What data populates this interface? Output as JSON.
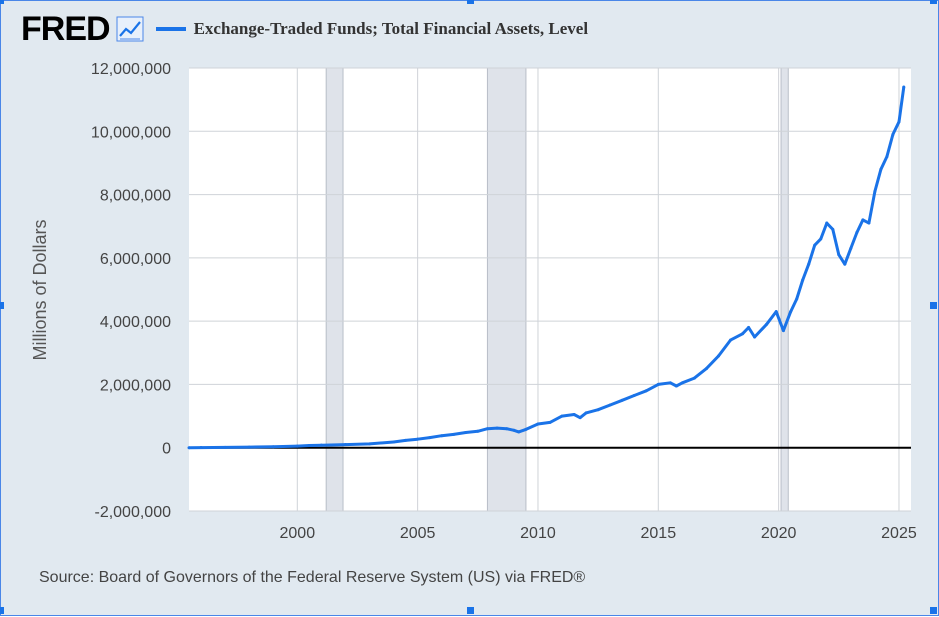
{
  "brand": {
    "name": "FRED"
  },
  "legend": {
    "label": "Exchange-Traded Funds; Total Financial Assets, Level",
    "color": "#1a73e8"
  },
  "source": "Source: Board of Governors of the Federal Reserve System (US) via FRED®",
  "chart_data": {
    "type": "line",
    "title": "Exchange-Traded Funds; Total Financial Assets, Level",
    "ylabel": "Millions of Dollars",
    "xlabel": "",
    "xlim": [
      1995.5,
      2025.5
    ],
    "ylim": [
      -2000000,
      12000000
    ],
    "xticks": [
      2000,
      2005,
      2010,
      2015,
      2020,
      2025
    ],
    "xtick_labels": [
      "2000",
      "2005",
      "2010",
      "2015",
      "2020",
      "2025"
    ],
    "yticks": [
      -2000000,
      0,
      2000000,
      4000000,
      6000000,
      8000000,
      10000000,
      12000000
    ],
    "ytick_labels": [
      "-2,000,000",
      "0",
      "2,000,000",
      "4,000,000",
      "6,000,000",
      "8,000,000",
      "10,000,000",
      "12,000,000"
    ],
    "recessions": [
      [
        2001.2,
        2001.9
      ],
      [
        2007.9,
        2009.5
      ],
      [
        2020.1,
        2020.4
      ]
    ],
    "grid": true,
    "series": [
      {
        "name": "Exchange-Traded Funds; Total Financial Assets, Level",
        "color": "#1a73e8",
        "x": [
          1995.5,
          1996,
          1997,
          1998,
          1999,
          2000,
          2000.5,
          2001,
          2002,
          2003,
          2004,
          2004.5,
          2005,
          2005.5,
          2006,
          2006.5,
          2007,
          2007.5,
          2007.9,
          2008.3,
          2008.7,
          2009,
          2009.2,
          2009.5,
          2010,
          2010.5,
          2011,
          2011.5,
          2011.75,
          2012,
          2012.5,
          2013,
          2013.5,
          2014,
          2014.5,
          2015,
          2015.5,
          2015.75,
          2016,
          2016.5,
          2017,
          2017.5,
          2018,
          2018.5,
          2018.75,
          2019,
          2019.5,
          2019.9,
          2020.2,
          2020.5,
          2020.75,
          2021,
          2021.25,
          2021.5,
          2021.75,
          2022,
          2022.25,
          2022.5,
          2022.75,
          2023,
          2023.25,
          2023.5,
          2023.75,
          2024,
          2024.25,
          2024.5,
          2024.75,
          2025,
          2025.2
        ],
        "values": [
          0,
          5000,
          10000,
          20000,
          30000,
          50000,
          70000,
          80000,
          100000,
          120000,
          180000,
          230000,
          270000,
          320000,
          380000,
          420000,
          480000,
          520000,
          600000,
          620000,
          600000,
          550000,
          500000,
          580000,
          750000,
          800000,
          1000000,
          1050000,
          950000,
          1100000,
          1200000,
          1350000,
          1500000,
          1650000,
          1800000,
          2000000,
          2050000,
          1950000,
          2050000,
          2200000,
          2500000,
          2900000,
          3400000,
          3600000,
          3800000,
          3500000,
          3900000,
          4300000,
          3700000,
          4300000,
          4700000,
          5300000,
          5800000,
          6400000,
          6600000,
          7100000,
          6900000,
          6100000,
          5800000,
          6300000,
          6800000,
          7200000,
          7100000,
          8100000,
          8800000,
          9200000,
          9900000,
          10300000,
          11400000
        ]
      }
    ]
  }
}
